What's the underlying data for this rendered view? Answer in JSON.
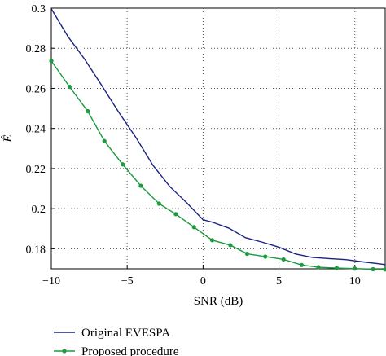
{
  "chart_data": {
    "type": "line",
    "xlabel": "SNR (dB)",
    "ylabel": "Ê",
    "xlim": [
      -10,
      12
    ],
    "ylim": [
      0.17,
      0.3
    ],
    "xticks": [
      -10,
      -5,
      0,
      5,
      10
    ],
    "xtick_labels": [
      "−10",
      "−5",
      "0",
      "5",
      "10"
    ],
    "yticks": [
      0.18,
      0.2,
      0.22,
      0.24,
      0.26,
      0.28,
      0.3
    ],
    "ytick_labels": [
      "0.18",
      "0.2",
      "0.22",
      "0.24",
      "0.26",
      "0.28",
      "0.3"
    ],
    "grid": true,
    "legend_position": "below",
    "series": [
      {
        "name": "Original EVESPA",
        "color": "#1a237e",
        "marker": "none",
        "x": [
          -10,
          -8.9,
          -7.8,
          -6.7,
          -5.6,
          -4.4,
          -3.3,
          -2.2,
          -1.1,
          0,
          0.6,
          1.7,
          2.8,
          3.9,
          5,
          6.1,
          7.2,
          8.3,
          9.4,
          10.5,
          11.6,
          12
        ],
        "y": [
          0.2997,
          0.2858,
          0.2745,
          0.2617,
          0.2486,
          0.2352,
          0.2216,
          0.2111,
          0.2031,
          0.1945,
          0.1933,
          0.1903,
          0.1855,
          0.1833,
          0.1808,
          0.1774,
          0.1757,
          0.1751,
          0.1746,
          0.1735,
          0.1725,
          0.1721
        ]
      },
      {
        "name": "Proposed procedure",
        "color": "#1b9a3e",
        "marker": "circle",
        "x": [
          -10,
          -8.8,
          -7.6,
          -6.5,
          -5.3,
          -4.1,
          -2.9,
          -1.8,
          -0.6,
          0.6,
          1.8,
          2.9,
          4.1,
          5.3,
          6.5,
          7.6,
          8.8,
          10,
          11.2,
          12
        ],
        "y": [
          0.2737,
          0.2608,
          0.2486,
          0.2337,
          0.2221,
          0.2114,
          0.2025,
          0.1973,
          0.1908,
          0.1843,
          0.1818,
          0.1775,
          0.1761,
          0.1747,
          0.1719,
          0.1708,
          0.1704,
          0.1701,
          0.1698,
          0.1697
        ]
      }
    ]
  }
}
